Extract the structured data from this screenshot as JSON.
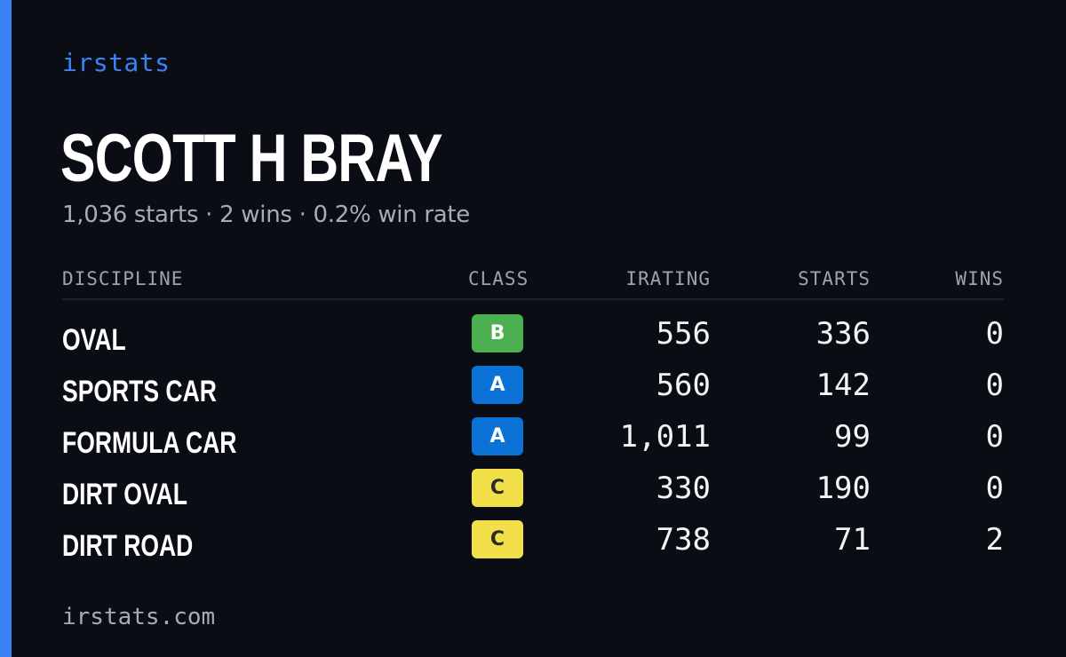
{
  "brand": "irstats",
  "driver": {
    "name": "SCOTT H BRAY",
    "summary": "1,036 starts · 2 wins · 0.2% win rate"
  },
  "table": {
    "headers": {
      "discipline": "DISCIPLINE",
      "class": "CLASS",
      "irating": "IRATING",
      "starts": "STARTS",
      "wins": "WINS"
    },
    "rows": [
      {
        "discipline": "OVAL",
        "class": "B",
        "class_color": "#4caf50",
        "class_text_color": "#ffffff",
        "irating": "556",
        "starts": "336",
        "wins": "0"
      },
      {
        "discipline": "SPORTS CAR",
        "class": "A",
        "class_color": "#0b72d8",
        "class_text_color": "#ffffff",
        "irating": "560",
        "starts": "142",
        "wins": "0"
      },
      {
        "discipline": "FORMULA CAR",
        "class": "A",
        "class_color": "#0b72d8",
        "class_text_color": "#ffffff",
        "irating": "1,011",
        "starts": "99",
        "wins": "0"
      },
      {
        "discipline": "DIRT OVAL",
        "class": "C",
        "class_color": "#f2e04a",
        "class_text_color": "#2b2b2b",
        "irating": "330",
        "starts": "190",
        "wins": "0"
      },
      {
        "discipline": "DIRT ROAD",
        "class": "C",
        "class_color": "#f2e04a",
        "class_text_color": "#2b2b2b",
        "irating": "738",
        "starts": "71",
        "wins": "2"
      }
    ]
  },
  "footer": "irstats.com",
  "colors": {
    "accent": "#3b82f6",
    "background": "#0a0d14"
  }
}
